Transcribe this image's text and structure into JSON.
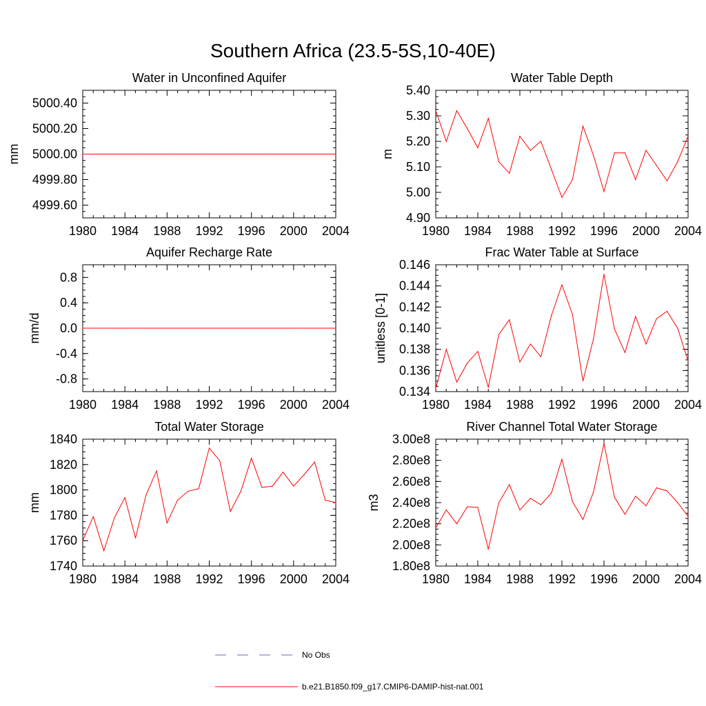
{
  "figure": {
    "title": "Southern Africa (23.5-5S,10-40E)",
    "line_color": "#ff0000",
    "obs_color": "#6a6ab0"
  },
  "legend": {
    "position": "bottom-center",
    "entries": [
      {
        "label": "No Obs",
        "style": "dashed",
        "color": "#6a6ab0"
      },
      {
        "label": "b.e21.B1850.f09_g17.CMIP6-DAMIP-hist-nat.001",
        "style": "solid",
        "color": "#ff0000"
      }
    ]
  },
  "chart_data": [
    {
      "type": "line",
      "title": "Water in Unconfined Aquifer",
      "xlabel": "",
      "ylabel": "mm",
      "xlim": [
        1980,
        2004
      ],
      "ylim": [
        4999.5,
        5000.5
      ],
      "xticks": [
        1980,
        1984,
        1988,
        1992,
        1996,
        2000,
        2004
      ],
      "yticks": [
        4999.6,
        4999.8,
        5000.0,
        5000.2,
        5000.4
      ],
      "ytick_labels": [
        "4999.60",
        "4999.80",
        "5000.00",
        "5000.20",
        "5000.40"
      ],
      "x": [
        1980,
        1981,
        1982,
        1983,
        1984,
        1985,
        1986,
        1987,
        1988,
        1989,
        1990,
        1991,
        1992,
        1993,
        1994,
        1995,
        1996,
        1997,
        1998,
        1999,
        2000,
        2001,
        2002,
        2003,
        2004
      ],
      "series": [
        {
          "values": [
            5000,
            5000,
            5000,
            5000,
            5000,
            5000,
            5000,
            5000,
            5000,
            5000,
            5000,
            5000,
            5000,
            5000,
            5000,
            5000,
            5000,
            5000,
            5000,
            5000,
            5000,
            5000,
            5000,
            5000,
            5000
          ]
        }
      ]
    },
    {
      "type": "line",
      "title": "Water Table Depth",
      "xlabel": "",
      "ylabel": "m",
      "xlim": [
        1980,
        2004
      ],
      "ylim": [
        4.9,
        5.4
      ],
      "xticks": [
        1980,
        1984,
        1988,
        1992,
        1996,
        2000,
        2004
      ],
      "yticks": [
        4.9,
        5.0,
        5.1,
        5.2,
        5.3,
        5.4
      ],
      "ytick_labels": [
        "4.90",
        "5.00",
        "5.10",
        "5.20",
        "5.30",
        "5.40"
      ],
      "x": [
        1980,
        1981,
        1982,
        1983,
        1984,
        1985,
        1986,
        1987,
        1988,
        1989,
        1990,
        1991,
        1992,
        1993,
        1994,
        1995,
        1996,
        1997,
        1998,
        1999,
        2000,
        2001,
        2002,
        2003,
        2004
      ],
      "series": [
        {
          "values": [
            5.32,
            5.2,
            5.32,
            5.25,
            5.175,
            5.29,
            5.12,
            5.075,
            5.22,
            5.165,
            5.2,
            5.09,
            4.98,
            5.05,
            5.26,
            5.145,
            5.003,
            5.155,
            5.155,
            5.05,
            5.165,
            5.105,
            5.045,
            5.12,
            5.22
          ]
        }
      ]
    },
    {
      "type": "line",
      "title": "Aquifer Recharge Rate",
      "xlabel": "",
      "ylabel": "mm/d",
      "xlim": [
        1980,
        2004
      ],
      "ylim": [
        -1.0,
        1.0
      ],
      "xticks": [
        1980,
        1984,
        1988,
        1992,
        1996,
        2000,
        2004
      ],
      "yticks": [
        -0.8,
        -0.4,
        0.0,
        0.4,
        0.8
      ],
      "ytick_labels": [
        "-0.8",
        "-0.4",
        "0.0",
        "0.4",
        "0.8"
      ],
      "x": [
        1980,
        1981,
        1982,
        1983,
        1984,
        1985,
        1986,
        1987,
        1988,
        1989,
        1990,
        1991,
        1992,
        1993,
        1994,
        1995,
        1996,
        1997,
        1998,
        1999,
        2000,
        2001,
        2002,
        2003,
        2004
      ],
      "series": [
        {
          "values": [
            0,
            0,
            0,
            0,
            0,
            0,
            0,
            0,
            0,
            0,
            0,
            0,
            0,
            0,
            0,
            0,
            0,
            0,
            0,
            0,
            0,
            0,
            0,
            0,
            0
          ]
        }
      ]
    },
    {
      "type": "line",
      "title": "Frac Water Table at Surface",
      "xlabel": "",
      "ylabel": "unitless [0-1]",
      "xlim": [
        1980,
        2004
      ],
      "ylim": [
        0.134,
        0.146
      ],
      "xticks": [
        1980,
        1984,
        1988,
        1992,
        1996,
        2000,
        2004
      ],
      "yticks": [
        0.134,
        0.136,
        0.138,
        0.14,
        0.142,
        0.144,
        0.146
      ],
      "ytick_labels": [
        "0.134",
        "0.136",
        "0.138",
        "0.140",
        "0.142",
        "0.144",
        "0.146"
      ],
      "x": [
        1980,
        1981,
        1982,
        1983,
        1984,
        1985,
        1986,
        1987,
        1988,
        1989,
        1990,
        1991,
        1992,
        1993,
        1994,
        1995,
        1996,
        1997,
        1998,
        1999,
        2000,
        2001,
        2002,
        2003,
        2004
      ],
      "series": [
        {
          "values": [
            0.1343,
            0.138,
            0.1349,
            0.1367,
            0.1378,
            0.1344,
            0.1394,
            0.1408,
            0.1368,
            0.1385,
            0.1373,
            0.1412,
            0.1441,
            0.1413,
            0.135,
            0.139,
            0.1451,
            0.1399,
            0.1377,
            0.1411,
            0.1385,
            0.1409,
            0.1416,
            0.14,
            0.1369
          ]
        }
      ]
    },
    {
      "type": "line",
      "title": "Total Water Storage",
      "xlabel": "",
      "ylabel": "mm",
      "xlim": [
        1980,
        2004
      ],
      "ylim": [
        1740,
        1840
      ],
      "xticks": [
        1980,
        1984,
        1988,
        1992,
        1996,
        2000,
        2004
      ],
      "yticks": [
        1740,
        1760,
        1780,
        1800,
        1820,
        1840
      ],
      "ytick_labels": [
        "1740",
        "1760",
        "1780",
        "1800",
        "1820",
        "1840"
      ],
      "x": [
        1980,
        1981,
        1982,
        1983,
        1984,
        1985,
        1986,
        1987,
        1988,
        1989,
        1990,
        1991,
        1992,
        1993,
        1994,
        1995,
        1996,
        1997,
        1998,
        1999,
        2000,
        2001,
        2002,
        2003,
        2004
      ],
      "series": [
        {
          "values": [
            1760,
            1779,
            1752,
            1778,
            1794,
            1762,
            1796,
            1815,
            1774,
            1792,
            1799,
            1801,
            1833,
            1823,
            1783,
            1799,
            1825,
            1802,
            1803,
            1814,
            1803,
            1812,
            1822,
            1792,
            1790
          ]
        }
      ]
    },
    {
      "type": "line",
      "title": "River Channel Total Water Storage",
      "xlabel": "",
      "ylabel": "m3",
      "xlim": [
        1980,
        2004
      ],
      "ylim": [
        180000000,
        300000000
      ],
      "xticks": [
        1980,
        1984,
        1988,
        1992,
        1996,
        2000,
        2004
      ],
      "yticks": [
        180000000,
        200000000,
        220000000,
        240000000,
        260000000,
        280000000,
        300000000
      ],
      "ytick_labels": [
        "1.80e8",
        "2.00e8",
        "2.20e8",
        "2.40e8",
        "2.60e8",
        "2.80e8",
        "3.00e8"
      ],
      "x": [
        1980,
        1981,
        1982,
        1983,
        1984,
        1985,
        1986,
        1987,
        1988,
        1989,
        1990,
        1991,
        1992,
        1993,
        1994,
        1995,
        1996,
        1997,
        1998,
        1999,
        2000,
        2001,
        2002,
        2003,
        2004
      ],
      "series": [
        {
          "values": [
            216000000,
            233000000,
            220000000,
            236000000,
            235500000,
            196000000,
            240000000,
            257000000,
            233000000,
            244000000,
            238000000,
            249000000,
            281000000,
            241000000,
            224000000,
            250000000,
            296000000,
            245000000,
            229000000,
            246000000,
            237000000,
            254000000,
            251000000,
            240000000,
            227000000
          ]
        }
      ]
    }
  ]
}
